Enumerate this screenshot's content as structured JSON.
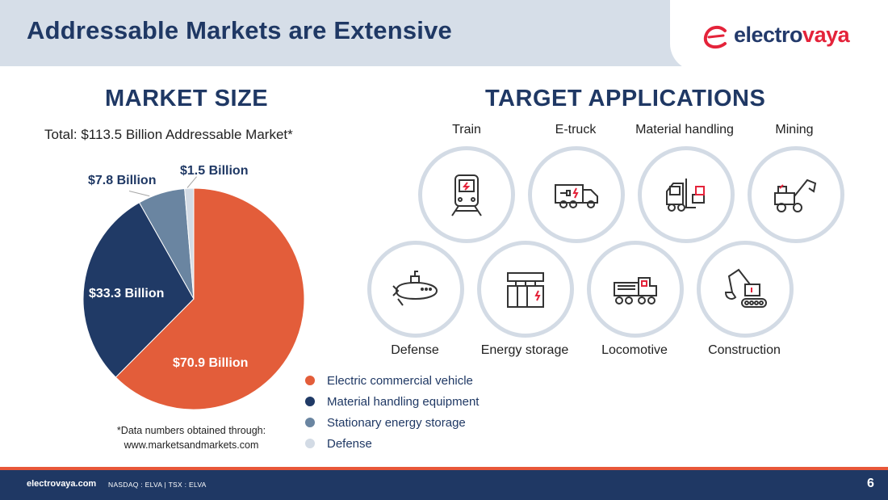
{
  "header": {
    "title": "Addressable Markets are Extensive",
    "logo_text_main": "electro",
    "logo_text_accent": "vaya"
  },
  "market": {
    "heading": "MARKET SIZE",
    "subtitle": "Total: $113.5 Billion Addressable Market*",
    "footnote_line1": "*Data numbers obtained through:",
    "footnote_line2": "www.marketsandmarkets.com"
  },
  "chart_data": {
    "type": "pie",
    "title": "",
    "slices": [
      {
        "name": "Electric commercial vehicle",
        "value": 70.9,
        "label": "$70.9 Billion",
        "color": "#e35d3a"
      },
      {
        "name": "Material handling equipment",
        "value": 33.3,
        "label": "$33.3 Billion",
        "color": "#203a66"
      },
      {
        "name": "Stationary energy storage",
        "value": 7.8,
        "label": "$7.8 Billion",
        "color": "#6a85a1"
      },
      {
        "name": "Defense",
        "value": 1.5,
        "label": "$1.5 Billion",
        "color": "#d3dbe5"
      }
    ],
    "legend_position": "bottom-right"
  },
  "targets": {
    "heading": "TARGET APPLICATIONS",
    "items": [
      {
        "label": "Train",
        "icon": "train-icon"
      },
      {
        "label": "E-truck",
        "icon": "electric-truck-icon"
      },
      {
        "label": "Material handling",
        "icon": "forklift-icon"
      },
      {
        "label": "Mining",
        "icon": "mining-loader-icon"
      },
      {
        "label": "Defense",
        "icon": "submarine-icon"
      },
      {
        "label": "Energy storage",
        "icon": "battery-storage-icon"
      },
      {
        "label": "Locomotive",
        "icon": "locomotive-icon"
      },
      {
        "label": "Construction",
        "icon": "excavator-icon"
      }
    ]
  },
  "footer": {
    "site": "electrovaya.com",
    "ticker": "NASDAQ : ELVA  |  TSX : ELVA",
    "page": "6"
  },
  "colors": {
    "navy": "#1f3864",
    "orange": "#e35d3a",
    "steel": "#6a85a1",
    "light": "#d3dbe5"
  }
}
